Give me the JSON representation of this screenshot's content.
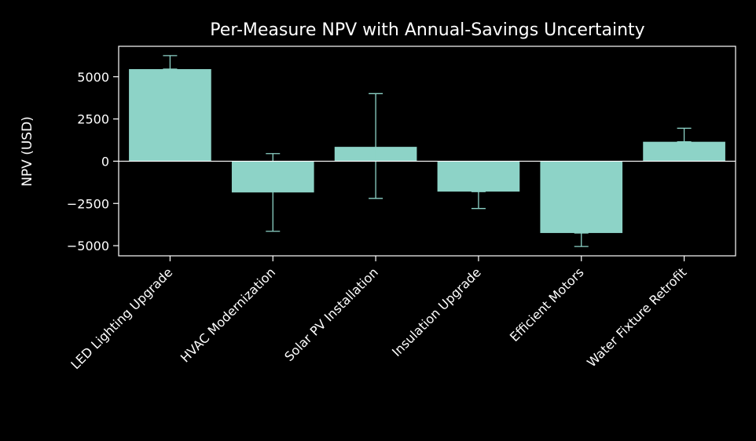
{
  "chart_data": {
    "type": "bar",
    "title": "Per-Measure NPV with Annual-Savings Uncertainty",
    "xlabel": "",
    "ylabel": "NPV (USD)",
    "categories": [
      "LED Lighting Upgrade",
      "HVAC Modernization",
      "Solar PV Installation",
      "Insulation Upgrade",
      "Efficient Motors",
      "Water Fixture Retrofit"
    ],
    "values": [
      5450,
      -1850,
      850,
      -1800,
      -4250,
      1150
    ],
    "error_low": [
      5450,
      -4150,
      -2200,
      -2800,
      -5050,
      1150
    ],
    "error_high": [
      6250,
      450,
      4000,
      -1800,
      -4250,
      1950
    ],
    "ylim": [
      -5600,
      6800
    ],
    "yticks": [
      -5000,
      -2500,
      0,
      2500,
      5000
    ],
    "ytick_labels": [
      "−5000",
      "−2500",
      "0",
      "2500",
      "5000"
    ],
    "grid": false,
    "legend": "none",
    "colors": {
      "background": "#000000",
      "bar": "#8dd3c7",
      "axes": "#ffffff",
      "text": "#ffffff"
    }
  }
}
